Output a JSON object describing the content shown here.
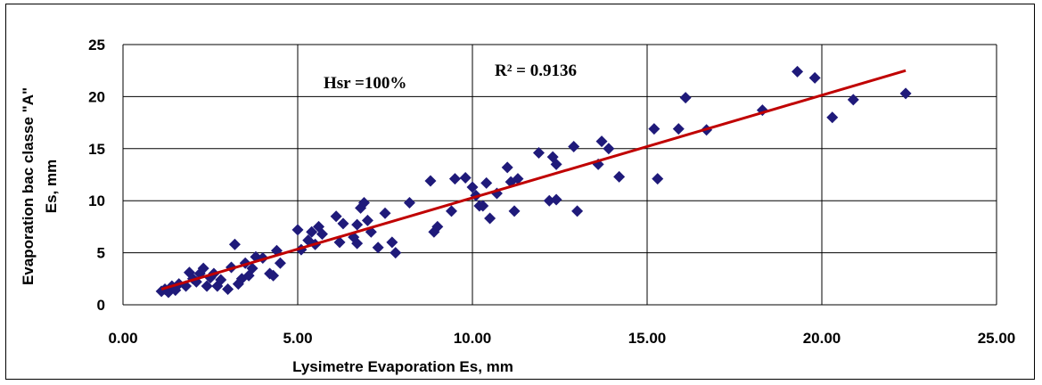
{
  "chart_data": {
    "type": "scatter",
    "title": "",
    "xlabel": "Lysimetre Evaporation Es, mm",
    "ylabel_line1": "Evaporation bac classe \"A\"",
    "ylabel_line2": "Es, mm",
    "xlim": [
      0,
      25
    ],
    "ylim": [
      0,
      25
    ],
    "x_ticks": [
      "0.00",
      "5.00",
      "10.00",
      "15.00",
      "20.00",
      "25.00"
    ],
    "y_ticks": [
      "0",
      "5",
      "10",
      "15",
      "20",
      "25"
    ],
    "grid": true,
    "legend": "none",
    "colors": {
      "points": "#1f1a7a",
      "trendline": "#c00000",
      "grid": "#000000"
    },
    "annotations": {
      "hsr": "Hsr =100%",
      "r2": "R² = 0.9136"
    },
    "trendline": {
      "x": [
        1.1,
        22.4
      ],
      "y": [
        1.5,
        22.5
      ]
    },
    "points": [
      [
        1.1,
        1.3
      ],
      [
        1.2,
        1.5
      ],
      [
        1.3,
        1.2
      ],
      [
        1.4,
        1.8
      ],
      [
        1.5,
        1.4
      ],
      [
        1.6,
        2.0
      ],
      [
        1.8,
        1.8
      ],
      [
        1.9,
        3.1
      ],
      [
        2.0,
        2.5
      ],
      [
        2.1,
        2.2
      ],
      [
        2.2,
        3.0
      ],
      [
        2.3,
        3.5
      ],
      [
        2.4,
        1.8
      ],
      [
        2.5,
        2.6
      ],
      [
        2.6,
        3.0
      ],
      [
        2.7,
        1.8
      ],
      [
        2.8,
        2.4
      ],
      [
        3.0,
        1.5
      ],
      [
        3.1,
        3.6
      ],
      [
        3.2,
        5.8
      ],
      [
        3.3,
        2.0
      ],
      [
        3.4,
        2.5
      ],
      [
        3.5,
        4.0
      ],
      [
        3.6,
        2.8
      ],
      [
        3.7,
        3.5
      ],
      [
        3.8,
        4.6
      ],
      [
        4.0,
        4.5
      ],
      [
        4.2,
        3.0
      ],
      [
        4.3,
        2.8
      ],
      [
        4.4,
        5.2
      ],
      [
        4.5,
        4.0
      ],
      [
        5.0,
        7.2
      ],
      [
        5.1,
        5.3
      ],
      [
        5.3,
        6.2
      ],
      [
        5.4,
        7.0
      ],
      [
        5.5,
        5.8
      ],
      [
        5.6,
        7.5
      ],
      [
        5.7,
        6.8
      ],
      [
        6.1,
        8.5
      ],
      [
        6.2,
        6.0
      ],
      [
        6.3,
        7.8
      ],
      [
        6.6,
        6.5
      ],
      [
        6.7,
        5.9
      ],
      [
        6.7,
        7.7
      ],
      [
        6.8,
        9.3
      ],
      [
        6.9,
        9.8
      ],
      [
        7.0,
        8.1
      ],
      [
        7.1,
        7.0
      ],
      [
        7.3,
        5.5
      ],
      [
        7.5,
        8.8
      ],
      [
        7.7,
        6.0
      ],
      [
        7.8,
        5.0
      ],
      [
        8.2,
        9.8
      ],
      [
        8.8,
        11.9
      ],
      [
        8.9,
        7.0
      ],
      [
        9.0,
        7.5
      ],
      [
        9.4,
        9.0
      ],
      [
        9.5,
        12.1
      ],
      [
        9.8,
        12.2
      ],
      [
        10.0,
        11.3
      ],
      [
        10.1,
        10.5
      ],
      [
        10.2,
        9.5
      ],
      [
        10.3,
        9.5
      ],
      [
        10.4,
        11.7
      ],
      [
        10.5,
        8.3
      ],
      [
        10.7,
        10.7
      ],
      [
        11.0,
        13.2
      ],
      [
        11.1,
        11.8
      ],
      [
        11.2,
        9.0
      ],
      [
        11.3,
        12.1
      ],
      [
        11.9,
        14.6
      ],
      [
        12.2,
        10.0
      ],
      [
        12.3,
        14.2
      ],
      [
        12.4,
        10.1
      ],
      [
        12.4,
        13.5
      ],
      [
        12.9,
        15.2
      ],
      [
        13.0,
        9.0
      ],
      [
        13.6,
        13.5
      ],
      [
        13.7,
        15.7
      ],
      [
        13.9,
        15.0
      ],
      [
        14.2,
        12.3
      ],
      [
        15.2,
        16.9
      ],
      [
        15.3,
        12.1
      ],
      [
        15.9,
        16.9
      ],
      [
        16.1,
        19.9
      ],
      [
        16.7,
        16.8
      ],
      [
        18.3,
        18.7
      ],
      [
        19.3,
        22.4
      ],
      [
        19.8,
        21.8
      ],
      [
        20.3,
        18.0
      ],
      [
        20.9,
        19.7
      ],
      [
        22.4,
        20.3
      ]
    ]
  }
}
